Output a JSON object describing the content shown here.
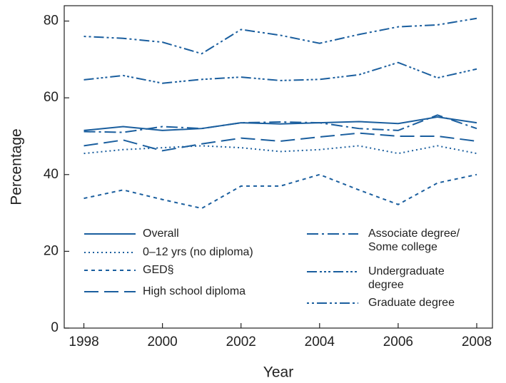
{
  "chart_data": {
    "type": "line",
    "x_label": "Year",
    "y_label": "Percentage",
    "x": [
      1998,
      1999,
      2000,
      2001,
      2002,
      2003,
      2004,
      2005,
      2006,
      2007,
      2008
    ],
    "xlim": [
      1997.5,
      2008.4
    ],
    "xticks": [
      1998,
      2000,
      2002,
      2004,
      2006,
      2008
    ],
    "ylim": [
      0,
      84
    ],
    "yticks": [
      0,
      20,
      40,
      60,
      80
    ],
    "series": [
      {
        "name": "Overall",
        "color": "#1a5e9e",
        "values": [
          51.5,
          52.5,
          51.5,
          52,
          53.5,
          53.2,
          53.5,
          53.8,
          53.3,
          55,
          53.5
        ]
      },
      {
        "name": "0–12 yrs (no diploma)",
        "color": "#1a5e9e",
        "values": [
          45.5,
          46.5,
          47,
          47.5,
          47,
          46,
          46.5,
          47.5,
          45.5,
          47.5,
          45.5
        ]
      },
      {
        "name": "GED§",
        "color": "#1a5e9e",
        "values": [
          33.8,
          36,
          33.5,
          31.2,
          37,
          37,
          40,
          36,
          32.2,
          37.8,
          40
        ]
      },
      {
        "name": "High school diploma",
        "color": "#1a5e9e",
        "values": [
          47.5,
          49,
          46.2,
          48,
          49.5,
          48.7,
          49.8,
          50.8,
          50,
          50,
          48.7
        ]
      },
      {
        "name": "Associate degree/ Some college",
        "color": "#1a5e9e",
        "values": [
          51.2,
          51,
          52.5,
          52,
          53.5,
          53.7,
          53.5,
          52,
          51.5,
          55.5,
          52
        ]
      },
      {
        "name": "Undergraduate degree",
        "color": "#1a5e9e",
        "values": [
          64.7,
          65.8,
          63.8,
          64.8,
          65.4,
          64.5,
          64.8,
          66,
          69.2,
          65.2,
          67.5
        ]
      },
      {
        "name": "Graduate degree",
        "color": "#1a5e9e",
        "values": [
          76,
          75.5,
          74.5,
          71.5,
          77.8,
          76.3,
          74.2,
          76.5,
          78.5,
          79,
          80.7
        ]
      }
    ]
  }
}
